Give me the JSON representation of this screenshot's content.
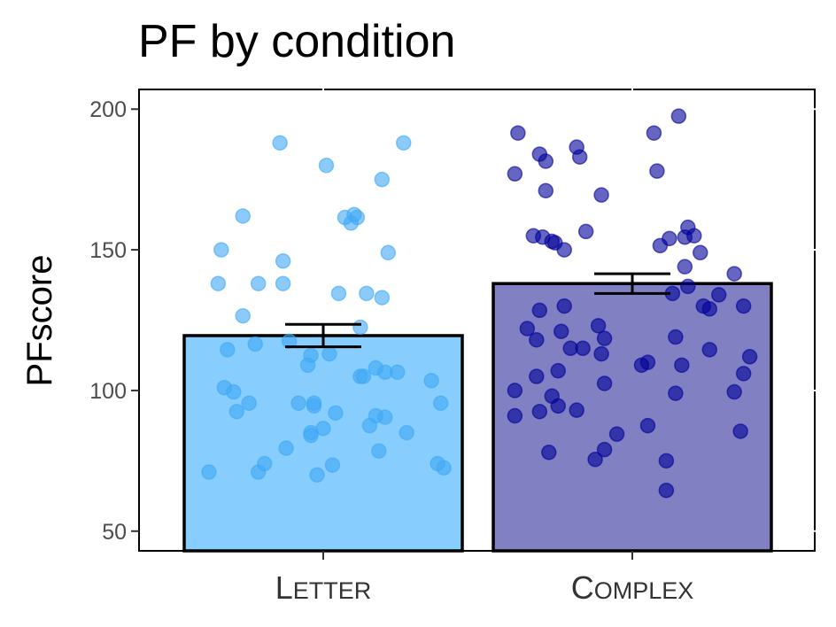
{
  "chart_data": {
    "type": "bar",
    "title": "PF by condition",
    "xlabel": "",
    "ylabel": "PFscore",
    "ylim": [
      43,
      207
    ],
    "yticks": [
      50,
      100,
      150,
      200
    ],
    "categories": [
      "Letter",
      "Complex"
    ],
    "category_labels": [
      {
        "first": "L",
        "rest": "ETTER"
      },
      {
        "first": "C",
        "rest": "OMPLEX"
      }
    ],
    "values": [
      119.5,
      138
    ],
    "error_bars": [
      [
        115.5,
        123.5
      ],
      [
        134.5,
        141.5
      ]
    ],
    "bar_colors": [
      "#87CEFF",
      "#8080C2"
    ],
    "point_colors": [
      "#3FA9F5",
      "#000099"
    ],
    "grid": false,
    "legend": "none",
    "points": [
      [
        {
          "x": -0.37,
          "y": 71
        },
        {
          "x": -0.34,
          "y": 138
        },
        {
          "x": -0.33,
          "y": 150
        },
        {
          "x": -0.32,
          "y": 101
        },
        {
          "x": -0.31,
          "y": 114.5
        },
        {
          "x": -0.29,
          "y": 99.5
        },
        {
          "x": -0.28,
          "y": 92.5
        },
        {
          "x": -0.26,
          "y": 126.5
        },
        {
          "x": -0.26,
          "y": 162
        },
        {
          "x": -0.24,
          "y": 95.5
        },
        {
          "x": -0.22,
          "y": 116.5
        },
        {
          "x": -0.21,
          "y": 138
        },
        {
          "x": -0.21,
          "y": 71
        },
        {
          "x": -0.19,
          "y": 74
        },
        {
          "x": -0.14,
          "y": 188
        },
        {
          "x": -0.13,
          "y": 138
        },
        {
          "x": -0.13,
          "y": 146
        },
        {
          "x": -0.12,
          "y": 79.5
        },
        {
          "x": -0.11,
          "y": 117.5
        },
        {
          "x": -0.08,
          "y": 95.5
        },
        {
          "x": -0.05,
          "y": 109
        },
        {
          "x": -0.04,
          "y": 84
        },
        {
          "x": -0.04,
          "y": 85
        },
        {
          "x": -0.04,
          "y": 112.5
        },
        {
          "x": -0.03,
          "y": 94.5
        },
        {
          "x": -0.03,
          "y": 95.5
        },
        {
          "x": -0.02,
          "y": 70
        },
        {
          "x": 0.0,
          "y": 86.5
        },
        {
          "x": 0.01,
          "y": 180
        },
        {
          "x": 0.02,
          "y": 113
        },
        {
          "x": 0.03,
          "y": 73.5
        },
        {
          "x": 0.04,
          "y": 92
        },
        {
          "x": 0.05,
          "y": 134.5
        },
        {
          "x": 0.07,
          "y": 161.5
        },
        {
          "x": 0.09,
          "y": 159.5
        },
        {
          "x": 0.1,
          "y": 162.5
        },
        {
          "x": 0.11,
          "y": 161.5
        },
        {
          "x": 0.12,
          "y": 122.5
        },
        {
          "x": 0.12,
          "y": 105
        },
        {
          "x": 0.13,
          "y": 105
        },
        {
          "x": 0.14,
          "y": 134.5
        },
        {
          "x": 0.15,
          "y": 87.5
        },
        {
          "x": 0.17,
          "y": 108
        },
        {
          "x": 0.17,
          "y": 91
        },
        {
          "x": 0.18,
          "y": 78.5
        },
        {
          "x": 0.19,
          "y": 175
        },
        {
          "x": 0.19,
          "y": 133
        },
        {
          "x": 0.2,
          "y": 90.5
        },
        {
          "x": 0.2,
          "y": 106.5
        },
        {
          "x": 0.21,
          "y": 149
        },
        {
          "x": 0.24,
          "y": 106.5
        },
        {
          "x": 0.27,
          "y": 85
        },
        {
          "x": 0.26,
          "y": 188
        },
        {
          "x": 0.35,
          "y": 103.5
        },
        {
          "x": 0.37,
          "y": 74
        },
        {
          "x": 0.38,
          "y": 95.5
        },
        {
          "x": 0.39,
          "y": 72.5
        }
      ],
      [
        {
          "x": -0.38,
          "y": 177
        },
        {
          "x": -0.37,
          "y": 191.5
        },
        {
          "x": -0.38,
          "y": 100
        },
        {
          "x": -0.38,
          "y": 91
        },
        {
          "x": -0.34,
          "y": 122
        },
        {
          "x": -0.32,
          "y": 155
        },
        {
          "x": -0.31,
          "y": 118
        },
        {
          "x": -0.31,
          "y": 105
        },
        {
          "x": -0.3,
          "y": 128.5
        },
        {
          "x": -0.3,
          "y": 184
        },
        {
          "x": -0.3,
          "y": 92.5
        },
        {
          "x": -0.29,
          "y": 154.5
        },
        {
          "x": -0.28,
          "y": 171
        },
        {
          "x": -0.27,
          "y": 78
        },
        {
          "x": -0.28,
          "y": 181.5
        },
        {
          "x": -0.26,
          "y": 153
        },
        {
          "x": -0.26,
          "y": 98
        },
        {
          "x": -0.25,
          "y": 152.5
        },
        {
          "x": -0.24,
          "y": 107
        },
        {
          "x": -0.24,
          "y": 94.5
        },
        {
          "x": -0.23,
          "y": 121
        },
        {
          "x": -0.22,
          "y": 150
        },
        {
          "x": -0.22,
          "y": 130
        },
        {
          "x": -0.2,
          "y": 115
        },
        {
          "x": -0.18,
          "y": 186.5
        },
        {
          "x": -0.18,
          "y": 93
        },
        {
          "x": -0.17,
          "y": 183
        },
        {
          "x": -0.16,
          "y": 115
        },
        {
          "x": -0.15,
          "y": 156.5
        },
        {
          "x": -0.12,
          "y": 75.5
        },
        {
          "x": -0.11,
          "y": 123
        },
        {
          "x": -0.1,
          "y": 169.5
        },
        {
          "x": -0.1,
          "y": 113
        },
        {
          "x": -0.09,
          "y": 118.5
        },
        {
          "x": -0.09,
          "y": 102.5
        },
        {
          "x": -0.09,
          "y": 79
        },
        {
          "x": -0.05,
          "y": 84.5
        },
        {
          "x": 0.03,
          "y": 109
        },
        {
          "x": 0.05,
          "y": 87.5
        },
        {
          "x": 0.05,
          "y": 110
        },
        {
          "x": 0.07,
          "y": 191.5
        },
        {
          "x": 0.08,
          "y": 178
        },
        {
          "x": 0.09,
          "y": 151.5
        },
        {
          "x": 0.11,
          "y": 75
        },
        {
          "x": 0.11,
          "y": 64.5
        },
        {
          "x": 0.12,
          "y": 154
        },
        {
          "x": 0.13,
          "y": 134.5
        },
        {
          "x": 0.14,
          "y": 119
        },
        {
          "x": 0.14,
          "y": 99
        },
        {
          "x": 0.15,
          "y": 197.5
        },
        {
          "x": 0.16,
          "y": 109
        },
        {
          "x": 0.17,
          "y": 144
        },
        {
          "x": 0.17,
          "y": 154.5
        },
        {
          "x": 0.18,
          "y": 137
        },
        {
          "x": 0.18,
          "y": 158
        },
        {
          "x": 0.2,
          "y": 155
        },
        {
          "x": 0.22,
          "y": 149
        },
        {
          "x": 0.23,
          "y": 130
        },
        {
          "x": 0.25,
          "y": 114.5
        },
        {
          "x": 0.25,
          "y": 129
        },
        {
          "x": 0.28,
          "y": 134
        },
        {
          "x": 0.33,
          "y": 141.5
        },
        {
          "x": 0.33,
          "y": 99.5
        },
        {
          "x": 0.35,
          "y": 85.5
        },
        {
          "x": 0.36,
          "y": 130
        },
        {
          "x": 0.36,
          "y": 106
        },
        {
          "x": 0.38,
          "y": 112
        }
      ]
    ]
  }
}
